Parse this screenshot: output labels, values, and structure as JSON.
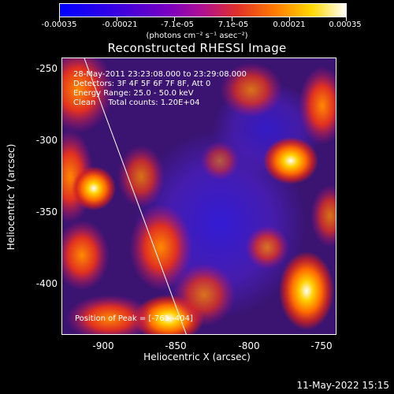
{
  "colorbar": {
    "ticks": [
      "-0.00035",
      "-0.00021",
      "-7.1e-05",
      "7.1e-05",
      "0.00021",
      "0.00035"
    ],
    "units": "(photons cm⁻² s⁻¹ asec⁻²)"
  },
  "plot": {
    "title": "Reconstructed RHESSI Image",
    "info_lines": [
      "28-May-2011 23:23:08.000 to 23:29:08.000",
      "Detectors: 3F 4F 5F 6F 7F 8F, Att 0",
      "Energy Range: 25.0 - 50.0 keV",
      "Clean     Total counts: 1.20E+04"
    ],
    "peak_text": "Position of Peak = [-761,-404]",
    "xlabel": "Heliocentric X (arcsec)",
    "ylabel": "Heliocentric Y (arcsec)",
    "xticks": [
      "-900",
      "-850",
      "-800",
      "-750"
    ],
    "yticks": [
      "-250",
      "-300",
      "-350",
      "-400"
    ]
  },
  "footer": {
    "timestamp": "11-May-2022 15:15"
  }
}
